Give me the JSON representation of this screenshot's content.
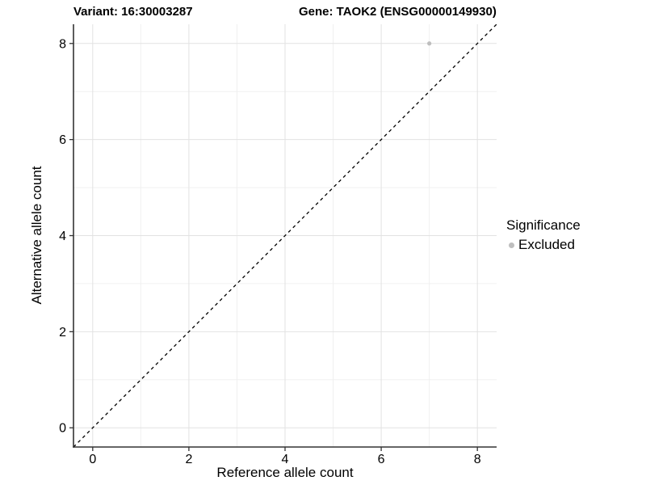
{
  "chart_data": {
    "type": "scatter",
    "title_left": "Variant: 16:30003287",
    "title_right": "Gene: TAOK2 (ENSG00000149930)",
    "xlabel": "Reference allele count",
    "ylabel": "Alternative allele count",
    "xlim": [
      -0.4,
      8.4
    ],
    "ylim": [
      -0.4,
      8.4
    ],
    "x_major_ticks": [
      0,
      2,
      4,
      6,
      8
    ],
    "y_major_ticks": [
      0,
      2,
      4,
      6,
      8
    ],
    "x_minor_ticks": [
      1,
      3,
      5,
      7
    ],
    "y_minor_ticks": [
      1,
      3,
      5,
      7
    ],
    "grid": "on",
    "legend_position": "right",
    "identity_line": {
      "equation": "y = x",
      "style": "dashed",
      "color": "#000000"
    },
    "series": [
      {
        "name": "Excluded",
        "color": "#bebebe",
        "points": [
          {
            "x": 7,
            "y": 8
          }
        ]
      }
    ],
    "legend": {
      "title": "Significance",
      "entries": [
        {
          "label": "Excluded",
          "color": "#bebebe"
        }
      ]
    },
    "style_colors": {
      "grid_major": "#e2e2e2",
      "grid_minor": "#f0f0f0",
      "axis_line": "#333333",
      "tick_mark": "#333333",
      "tick_label": "#000000"
    }
  }
}
